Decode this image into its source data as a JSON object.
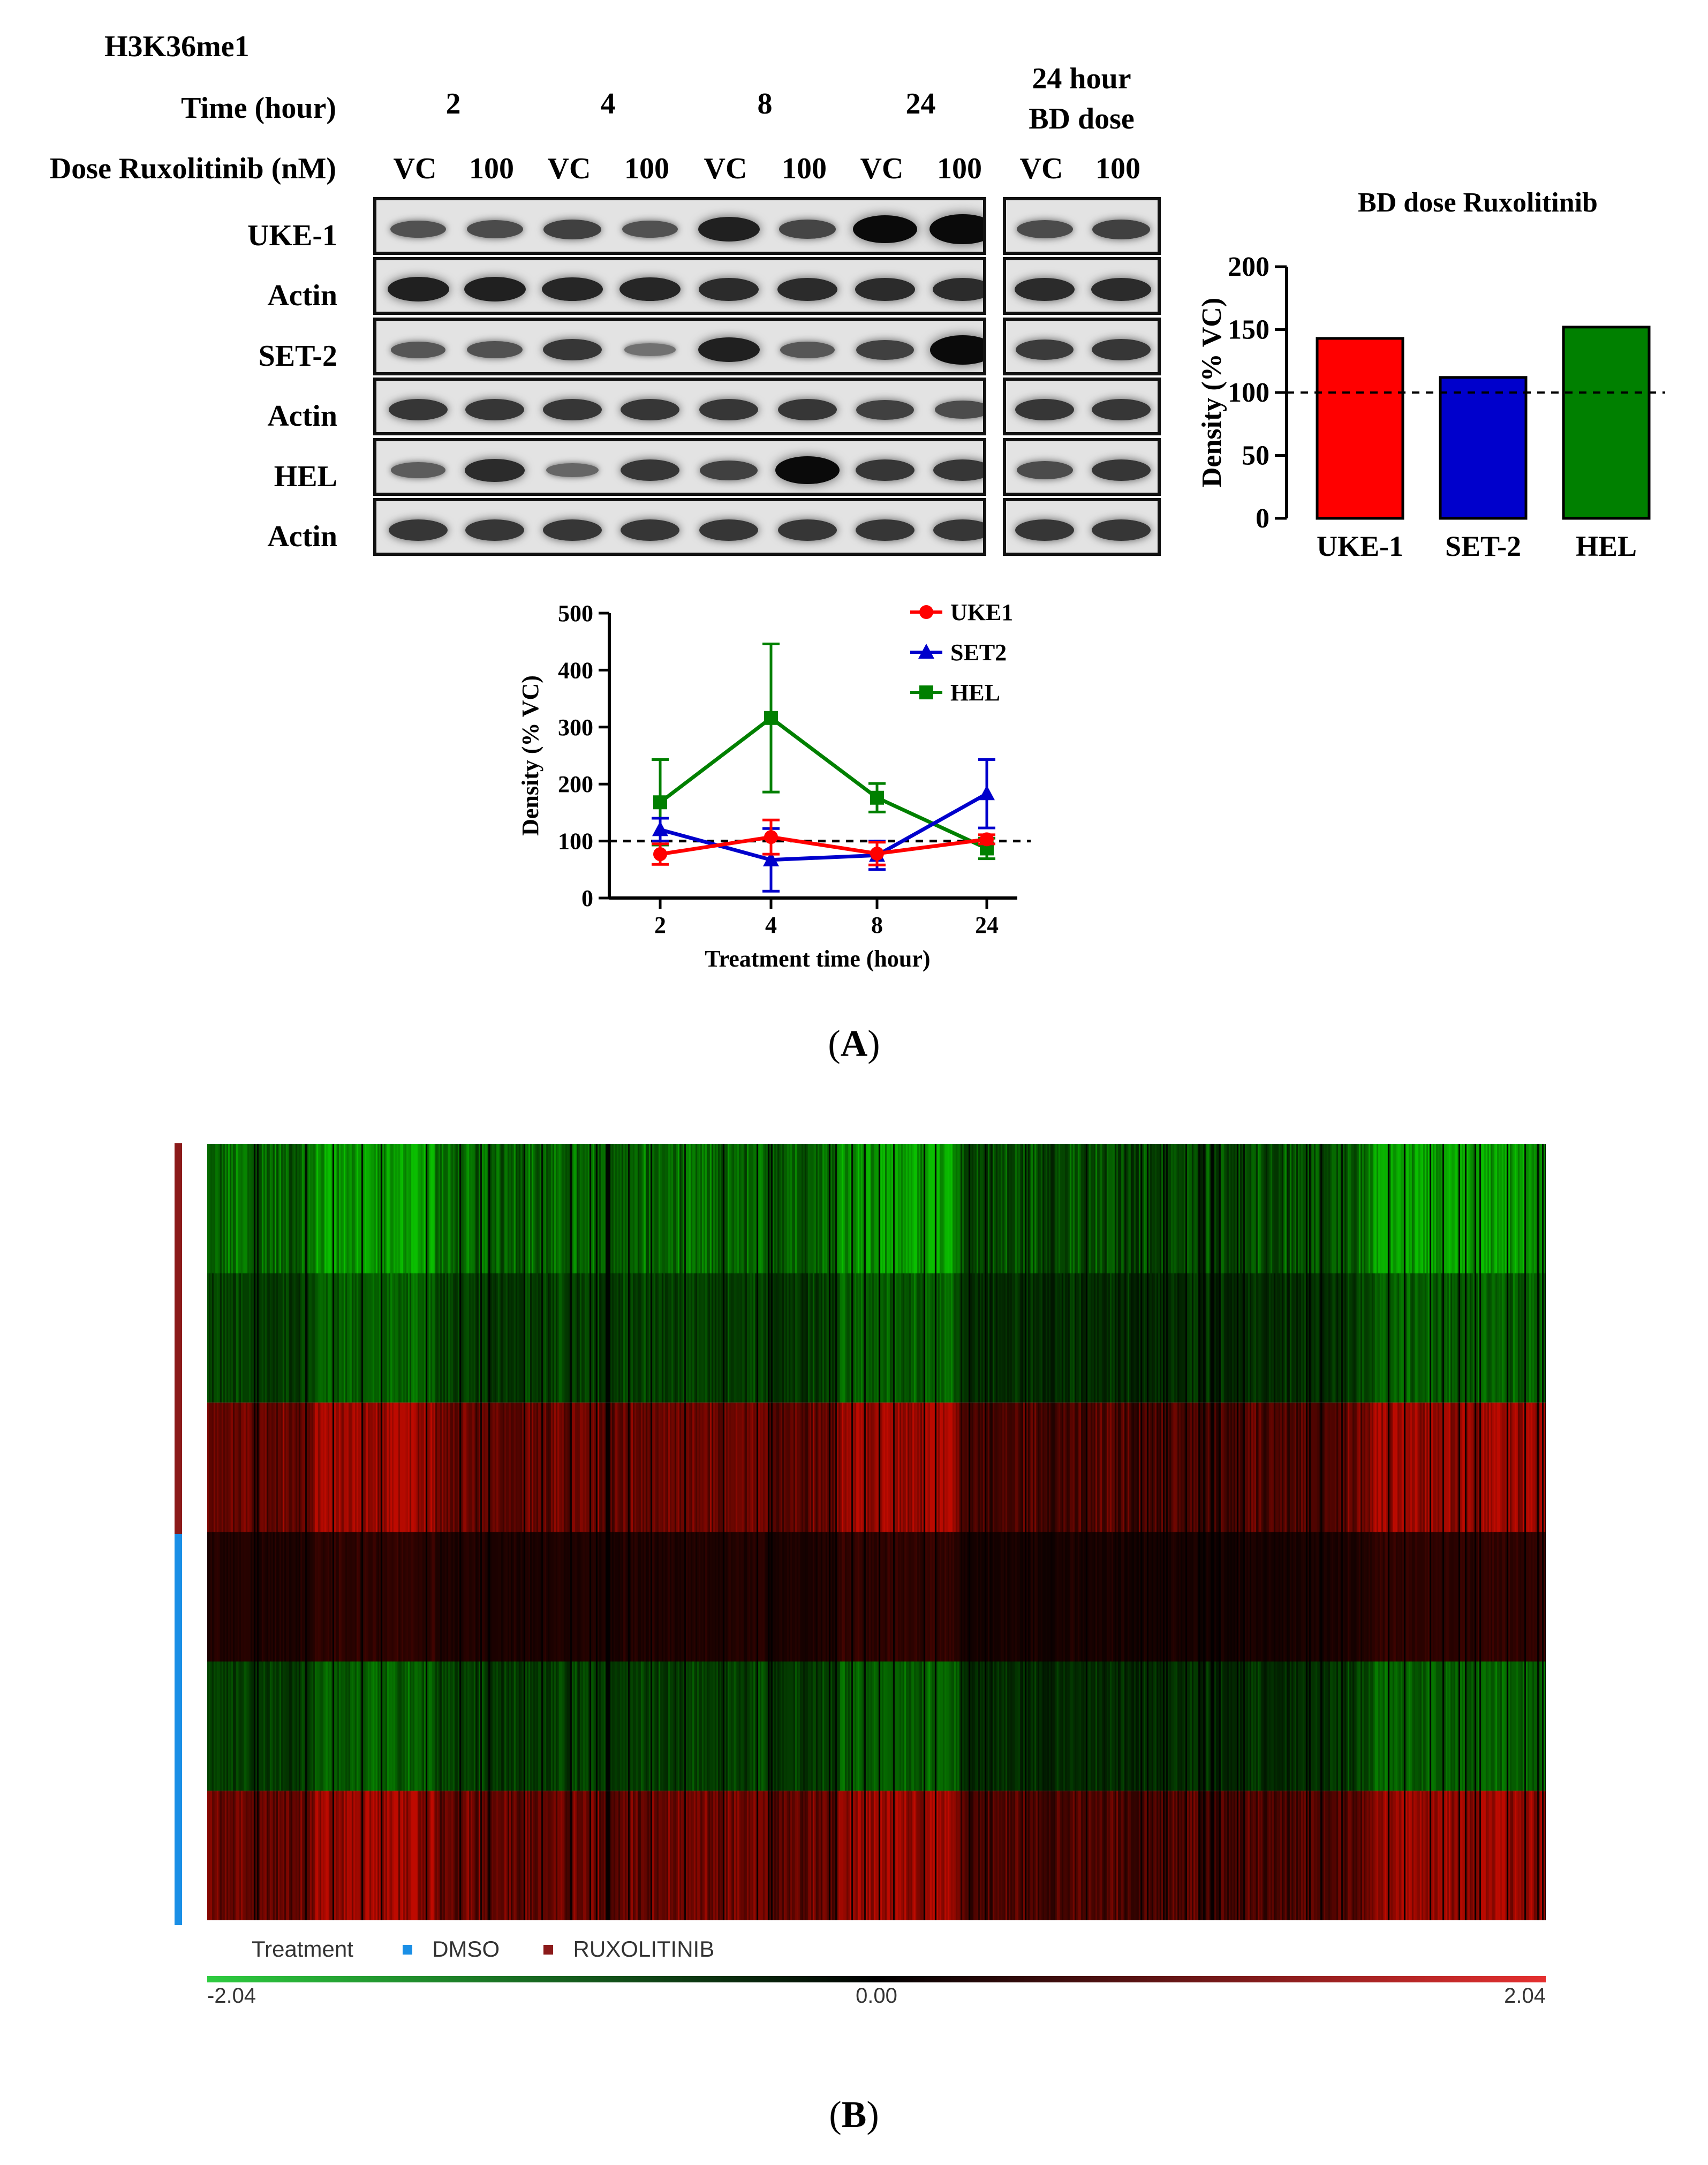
{
  "panel_a": {
    "western_blot": {
      "title": "H3K36me1",
      "time_row_label": "Time (hour)",
      "time_points": [
        "2",
        "4",
        "8",
        "24"
      ],
      "bd_group_label": [
        "24 hour",
        "BD dose"
      ],
      "dose_row_label": "Dose Ruxolitinib (nM)",
      "dose_labels": [
        "VC",
        "100",
        "VC",
        "100",
        "VC",
        "100",
        "VC",
        "100",
        "VC",
        "100"
      ],
      "row_labels": [
        "UKE-1",
        "Actin",
        "SET-2",
        "Actin",
        "HEL",
        "Actin"
      ]
    },
    "label": "(A)",
    "label_letter": "A"
  },
  "chart_data": [
    {
      "type": "bar",
      "title": "BD dose Ruxolitinib",
      "xlabel": "",
      "ylabel": "Density (% VC)",
      "categories": [
        "UKE-1",
        "SET-2",
        "HEL"
      ],
      "values": [
        143,
        112,
        152
      ],
      "colors": [
        "#ff0000",
        "#0000cc",
        "#008000"
      ],
      "ylim": [
        0,
        200
      ],
      "yticks": [
        "0",
        "50",
        "100",
        "150",
        "200"
      ],
      "reference_line": 100
    },
    {
      "type": "line",
      "title": "",
      "xlabel": "Treatment time (hour)",
      "ylabel": "Density (% VC)",
      "x": [
        "2",
        "4",
        "8",
        "24"
      ],
      "ylim": [
        0,
        500
      ],
      "yticks": [
        "0",
        "100",
        "200",
        "300",
        "400",
        "500"
      ],
      "reference_line": 100,
      "legend_position": "top-right",
      "series": [
        {
          "name": "UKE1",
          "color": "#ff0000",
          "marker": "circle",
          "values": [
            77,
            107,
            78,
            103
          ],
          "error": [
            18,
            30,
            20,
            8
          ]
        },
        {
          "name": "SET2",
          "color": "#0000cc",
          "marker": "triangle",
          "values": [
            120,
            67,
            75,
            183
          ],
          "error": [
            20,
            55,
            25,
            60
          ]
        },
        {
          "name": "HEL",
          "color": "#008000",
          "marker": "square",
          "values": [
            168,
            316,
            176,
            87
          ],
          "error": [
            75,
            130,
            25,
            18
          ]
        }
      ]
    },
    {
      "type": "heatmap",
      "title": "",
      "rows": 6,
      "row_treatment": [
        "RUXOLITINIB",
        "RUXOLITINIB",
        "RUXOLITINIB",
        "DMSO",
        "DMSO",
        "DMSO"
      ],
      "row_mean_sign": [
        -1,
        -0.6,
        1,
        0.3,
        -0.6,
        1
      ],
      "color_scale": {
        "min": "-2.04",
        "mid": "0.00",
        "max": "2.04",
        "low_color": "#2ecc40",
        "mid_color": "#000000",
        "high_color": "#e53030"
      },
      "legend": {
        "title": "Treatment",
        "items": [
          {
            "label": "DMSO",
            "color": "#1a8fe6"
          },
          {
            "label": "RUXOLITINIB",
            "color": "#8b1a1a"
          }
        ]
      }
    }
  ],
  "panel_b": {
    "label": "(B)",
    "label_letter": "B"
  }
}
